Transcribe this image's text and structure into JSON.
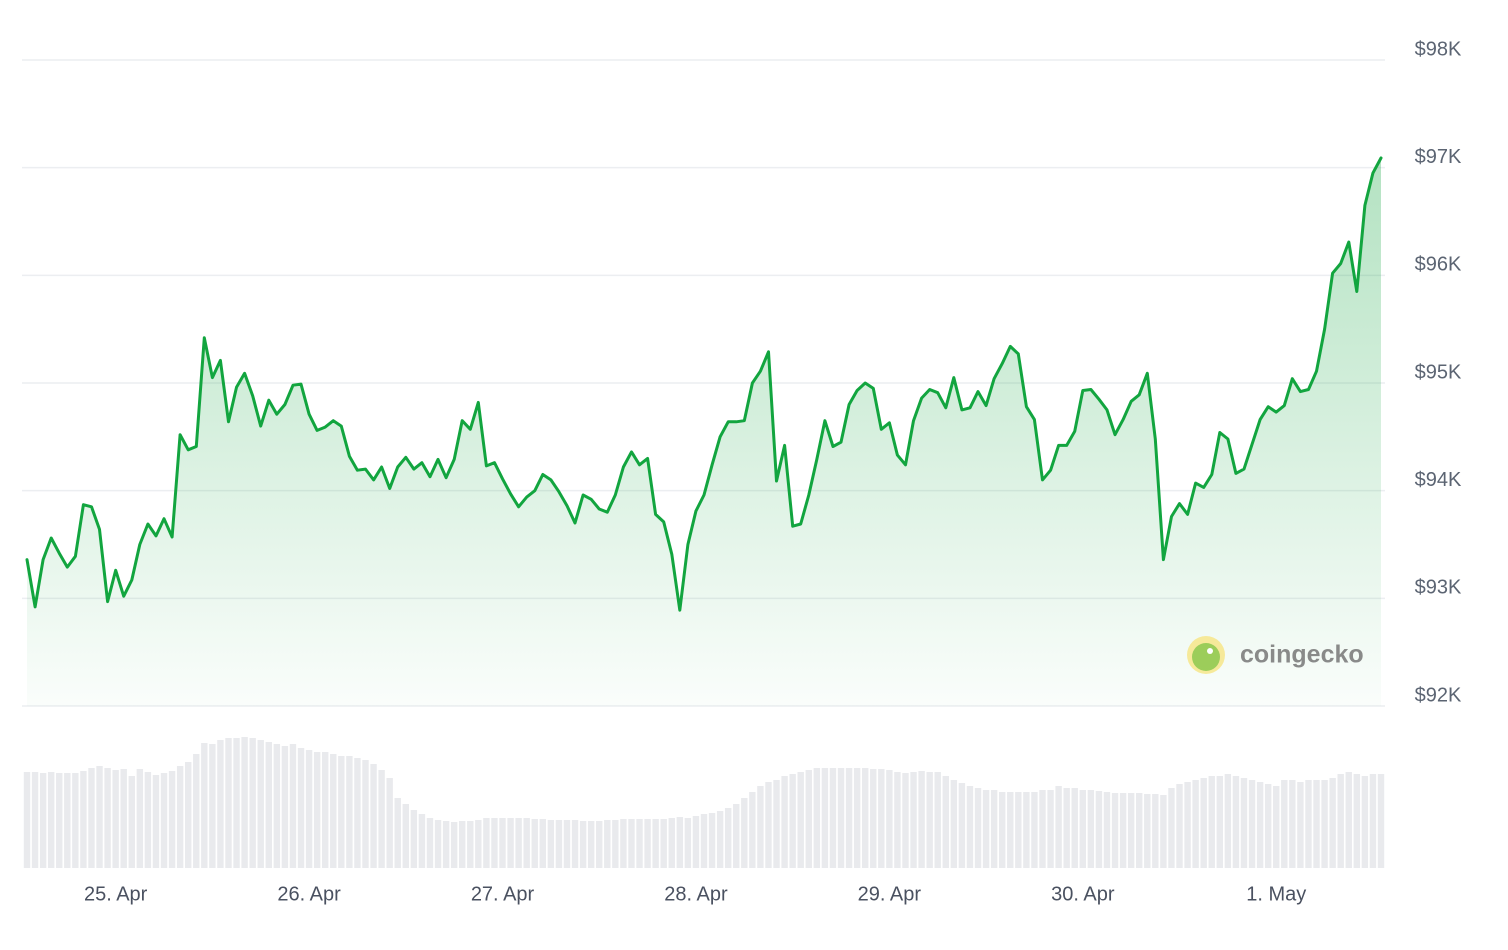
{
  "chart_data": {
    "type": "area",
    "watermark": "coingecko",
    "categories": [
      null,
      null,
      null,
      null,
      null,
      null,
      null,
      null,
      null,
      null,
      null,
      "25. Apr",
      null,
      null,
      null,
      null,
      null,
      null,
      null,
      null,
      null,
      null,
      null,
      null,
      null,
      null,
      null,
      null,
      null,
      null,
      null,
      null,
      null,
      null,
      null,
      "26. Apr",
      null,
      null,
      null,
      null,
      null,
      null,
      null,
      null,
      null,
      null,
      null,
      null,
      null,
      null,
      null,
      null,
      null,
      null,
      null,
      null,
      null,
      null,
      null,
      "27. Apr",
      null,
      null,
      null,
      null,
      null,
      null,
      null,
      null,
      null,
      null,
      null,
      null,
      null,
      null,
      null,
      null,
      null,
      null,
      null,
      null,
      null,
      null,
      null,
      "28. Apr",
      null,
      null,
      null,
      null,
      null,
      null,
      null,
      null,
      null,
      null,
      null,
      null,
      null,
      null,
      null,
      null,
      null,
      null,
      null,
      null,
      null,
      null,
      null,
      "29. Apr",
      null,
      null,
      null,
      null,
      null,
      null,
      null,
      null,
      null,
      null,
      null,
      null,
      null,
      null,
      null,
      null,
      null,
      null,
      null,
      null,
      null,
      null,
      null,
      "30. Apr",
      null,
      null,
      null,
      null,
      null,
      null,
      null,
      null,
      null,
      null,
      null,
      null,
      null,
      null,
      null,
      null,
      null,
      null,
      null,
      null,
      null,
      null,
      null,
      "1. May",
      null,
      null,
      null,
      null,
      null,
      null,
      null,
      null,
      null,
      null,
      null,
      null,
      null
    ],
    "values": [
      93360,
      92920,
      93360,
      93560,
      93420,
      93290,
      93390,
      93870,
      93850,
      93640,
      92970,
      93260,
      93020,
      93170,
      93500,
      93690,
      93580,
      93740,
      93570,
      94520,
      94380,
      94410,
      95420,
      95050,
      95210,
      94640,
      94960,
      95090,
      94880,
      94600,
      94840,
      94710,
      94800,
      94980,
      94990,
      94710,
      94560,
      94590,
      94650,
      94600,
      94320,
      94190,
      94200,
      94100,
      94220,
      94020,
      94220,
      94310,
      94200,
      94260,
      94130,
      94290,
      94120,
      94290,
      94650,
      94570,
      94820,
      94230,
      94260,
      94110,
      93970,
      93850,
      93940,
      94000,
      94150,
      94100,
      93990,
      93860,
      93700,
      93960,
      93920,
      93830,
      93800,
      93960,
      94220,
      94360,
      94240,
      94300,
      93780,
      93710,
      93410,
      92890,
      93500,
      93810,
      93960,
      94240,
      94500,
      94640,
      94640,
      94650,
      95000,
      95110,
      95290,
      94090,
      94420,
      93670,
      93690,
      93960,
      94290,
      94650,
      94410,
      94450,
      94800,
      94930,
      95000,
      94950,
      94570,
      94630,
      94330,
      94240,
      94650,
      94860,
      94940,
      94910,
      94770,
      95050,
      94750,
      94770,
      94920,
      94790,
      95040,
      95180,
      95340,
      95270,
      94780,
      94660,
      94100,
      94190,
      94420,
      94420,
      94550,
      94930,
      94940,
      94850,
      94750,
      94520,
      94660,
      94830,
      94890,
      95090,
      94480,
      93360,
      93760,
      93880,
      93780,
      94070,
      94030,
      94150,
      94540,
      94480,
      94160,
      94200,
      94430,
      94660,
      94780,
      94730,
      94790,
      95040,
      94920,
      94940,
      95110,
      95500,
      96020,
      96110,
      96310,
      95850,
      96650,
      96950,
      97090
    ],
    "color": "#12a53f",
    "volumes": [
      96,
      96,
      95,
      96,
      95,
      95,
      95,
      97,
      100,
      102,
      100,
      98,
      99,
      92,
      99,
      96,
      93,
      95,
      97,
      102,
      106,
      114,
      125,
      124,
      128,
      130,
      130,
      131,
      130,
      128,
      126,
      124,
      122,
      124,
      120,
      118,
      116,
      116,
      114,
      112,
      112,
      110,
      108,
      104,
      98,
      90,
      70,
      64,
      58,
      54,
      50,
      48,
      47,
      46,
      47,
      47,
      48,
      50,
      50,
      50,
      50,
      50,
      50,
      49,
      49,
      48,
      48,
      48,
      48,
      47,
      47,
      47,
      48,
      48,
      49,
      49,
      49,
      49,
      49,
      49,
      50,
      51,
      50,
      52,
      54,
      55,
      57,
      60,
      64,
      70,
      76,
      82,
      86,
      88,
      92,
      94,
      96,
      98,
      100,
      100,
      100,
      100,
      100,
      100,
      100,
      99,
      99,
      98,
      96,
      95,
      96,
      97,
      96,
      96,
      92,
      88,
      85,
      82,
      80,
      78,
      78,
      76,
      76,
      76,
      76,
      76,
      78,
      78,
      82,
      80,
      80,
      78,
      78,
      77,
      76,
      75,
      75,
      75,
      75,
      74,
      74,
      73,
      80,
      84,
      86,
      88,
      90,
      92,
      92,
      94,
      92,
      90,
      88,
      86,
      84,
      82,
      88,
      88,
      86,
      88,
      88,
      88,
      90,
      94,
      96,
      94,
      92,
      94,
      94
    ],
    "volume_color": "#e9eaed",
    "ylim": [
      92000,
      98000
    ],
    "yticks": [
      {
        "value": 92000,
        "label": "$92K"
      },
      {
        "value": 93000,
        "label": "$93K"
      },
      {
        "value": 94000,
        "label": "$94K"
      },
      {
        "value": 95000,
        "label": "$95K"
      },
      {
        "value": 96000,
        "label": "$96K"
      },
      {
        "value": 97000,
        "label": "$97K"
      },
      {
        "value": 98000,
        "label": "$98K"
      }
    ],
    "grid": true
  }
}
